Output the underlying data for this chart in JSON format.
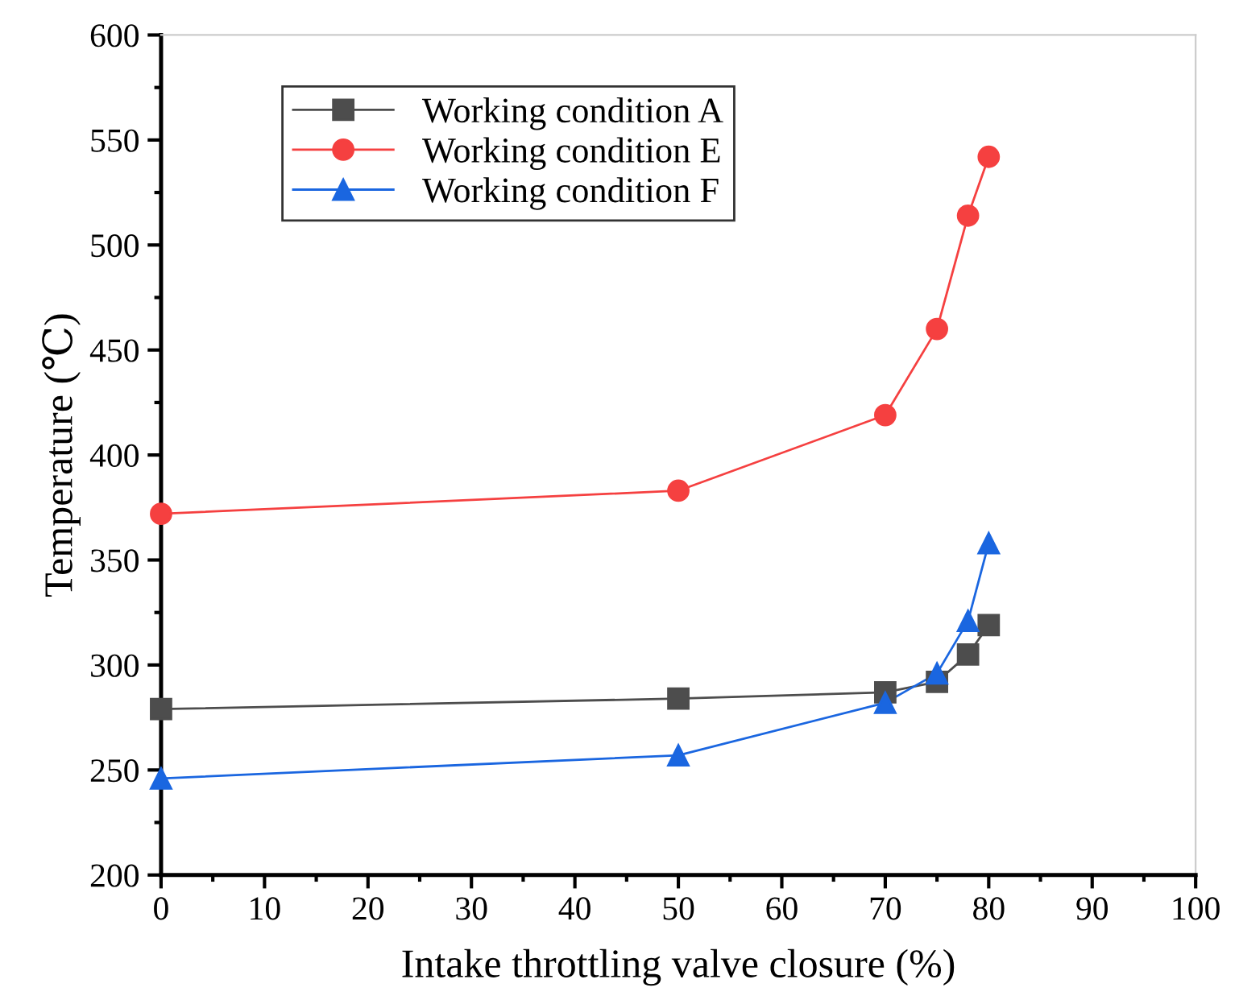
{
  "chart_data": {
    "type": "line",
    "xlabel": "Intake throttling valve closure (%)",
    "ylabel": "Temperature (℃)",
    "x": [
      0,
      50,
      70,
      75,
      78,
      80
    ],
    "xlim": [
      0,
      100
    ],
    "xticks": [
      0,
      10,
      20,
      30,
      40,
      50,
      60,
      70,
      80,
      90,
      100
    ],
    "ylim": [
      200,
      600
    ],
    "yticks": [
      200,
      250,
      300,
      350,
      400,
      450,
      500,
      550,
      600
    ],
    "grid": false,
    "legend": "top left",
    "line_style": "solid",
    "series": [
      {
        "name": "Working condition A",
        "color": "#4d4d4d",
        "marker": "square",
        "values": [
          279,
          284,
          287,
          292,
          305,
          319
        ]
      },
      {
        "name": "Working condition E",
        "color": "#f54040",
        "marker": "circle",
        "values": [
          372,
          383,
          419,
          460,
          514,
          542
        ]
      },
      {
        "name": "Working condition F",
        "color": "#1a66e0",
        "marker": "triangle",
        "values": [
          246,
          257,
          282,
          296,
          321,
          358
        ]
      }
    ]
  }
}
